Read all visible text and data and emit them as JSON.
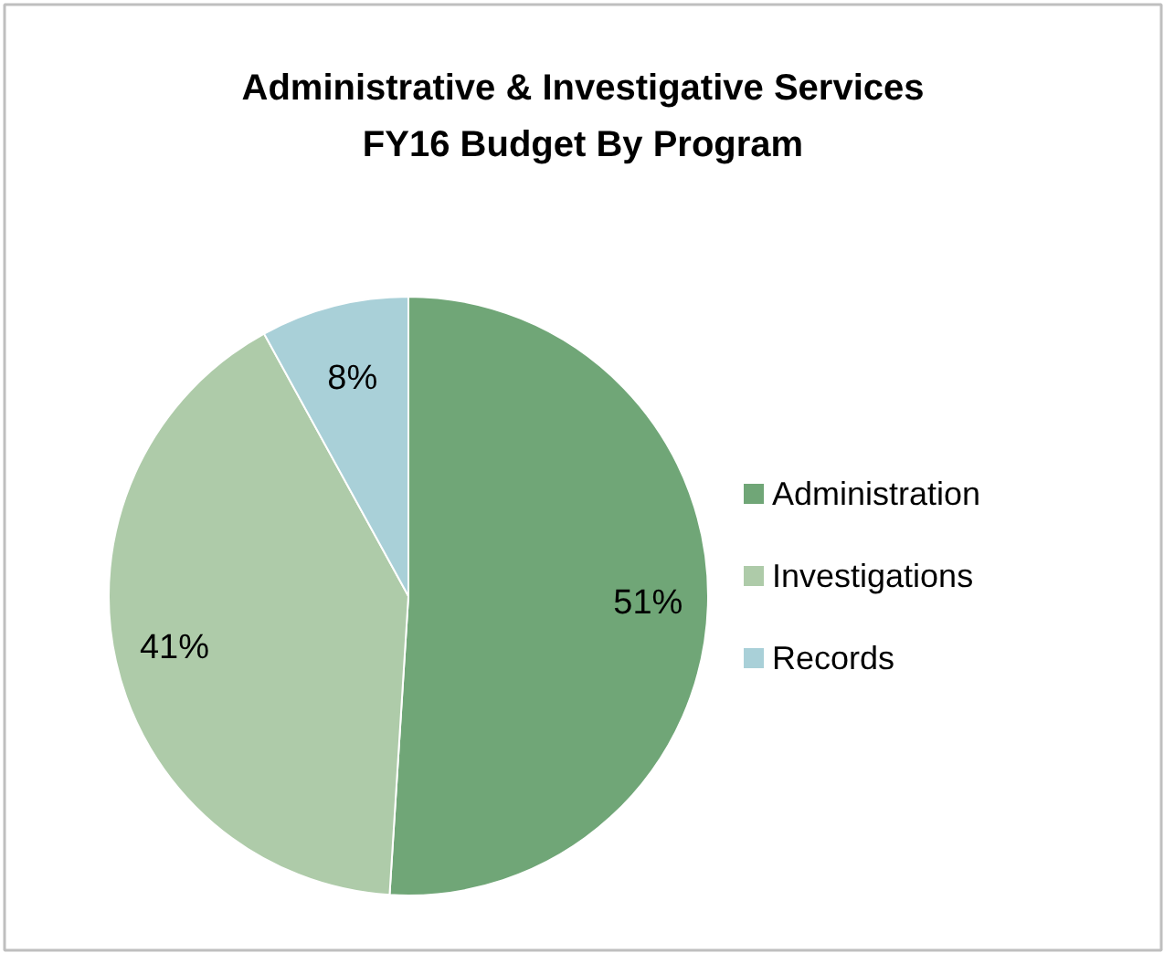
{
  "chart_data": {
    "type": "pie",
    "title": "Administrative & Investigative Services\nFY16 Budget By Program",
    "categories": [
      "Administration",
      "Investigations",
      "Records"
    ],
    "values": [
      51,
      41,
      8
    ],
    "colors": [
      "#70a677",
      "#aecba9",
      "#a9d0d8"
    ],
    "value_labels": [
      "51%",
      "41%",
      "8%"
    ],
    "legend": "right"
  }
}
